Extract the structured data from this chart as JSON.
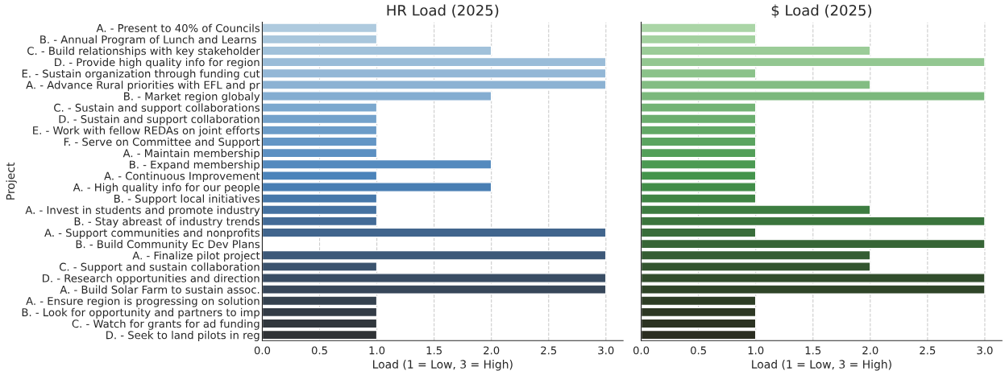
{
  "chart_data": [
    {
      "type": "bar",
      "orientation": "horizontal",
      "title": "HR Load (2025)",
      "xlabel": "Load (1 = Low, 3 = High)",
      "ylabel": "Project",
      "categories": [
        "A. - Present to 40% of Councils",
        "B. - Annual Program of Lunch and Learns ",
        "C. - Build relationships with key stakeholder",
        "D. - Provide high quality info for region",
        "E. - Sustain organization through funding cut",
        "A. - Advance Rural priorities with EFL and pr",
        "B. - Market region globaly",
        "C. - Sustain and support collaborations",
        "D. - Sustain and support collaboration",
        "E. - Work with fellow REDAs on joint efforts",
        "F. - Serve on Committee and Support",
        "A. - Maintain membership",
        "B. - Expand membership",
        "A. - Continuous Improvement",
        "A. - High quality info for our people",
        "B. - Support local initiatives",
        "A. - Invest in students and promote industry",
        "B. - Stay abreast of industry trends",
        "A. - Support communities and nonprofits",
        "B. - Build Community Ec Dev Plans",
        "A. - Finalize pilot project",
        "C. - Support and sustain collaboration",
        "D. - Research opportunities and direction",
        "A. - Build Solar Farm to sustain assoc.",
        "A. - Ensure region is progressing on solution",
        "B. - Look for opportunity and partners to imp",
        "C. - Watch for grants for ad funding",
        "D. - Seek to land pilots in reg"
      ],
      "values": [
        1,
        1,
        2,
        3,
        3,
        3,
        2,
        1,
        1,
        1,
        1,
        1,
        2,
        1,
        2,
        1,
        1,
        1,
        3,
        null,
        3,
        1,
        3,
        3,
        1,
        1,
        1,
        1
      ],
      "colors": [
        "#aecade",
        "#a8c6dc",
        "#a1c1da",
        "#9abcd8",
        "#93b7d6",
        "#8cb2d3",
        "#84add1",
        "#7ca8ce",
        "#74a2cb",
        "#6c9cc8",
        "#6496c5",
        "#5c90c2",
        "#548abe",
        "#4c84ba",
        "#487eb3",
        "#4678aa",
        "#4572a1",
        "#436b97",
        "#41658d",
        "#3f5f83",
        "#3d5979",
        "#3b536e",
        "#394d64",
        "#37475a",
        "#35424f",
        "#333c46",
        "#31373d",
        "#2f3235"
      ],
      "xlim": [
        0,
        3.15
      ],
      "xticks": [
        {
          "value": 0,
          "label": "0.0"
        },
        {
          "value": 0.5,
          "label": "0.5"
        },
        {
          "value": 1,
          "label": "1.0"
        },
        {
          "value": 1.5,
          "label": "1.5"
        },
        {
          "value": 2,
          "label": "2.0"
        },
        {
          "value": 2.5,
          "label": "2.5"
        },
        {
          "value": 3,
          "label": "3.0"
        }
      ],
      "grid": "x"
    },
    {
      "type": "bar",
      "orientation": "horizontal",
      "title": "$ Load (2025)",
      "xlabel": "Load (1 = Low, 3 = High)",
      "tick_labels": "x",
      "values": [
        1,
        1,
        2,
        3,
        1,
        2,
        3,
        1,
        1,
        1,
        1,
        1,
        1,
        1,
        1,
        1,
        2,
        3,
        1,
        3,
        2,
        2,
        3,
        3,
        1,
        1,
        1,
        1
      ],
      "colors": [
        "#aad5a6",
        "#a3d19f",
        "#9bcc98",
        "#93c791",
        "#8bc28a",
        "#83bd83",
        "#7bb87c",
        "#73b375",
        "#6bae6e",
        "#63a967",
        "#5ba460",
        "#539f59",
        "#4b9a52",
        "#44944c",
        "#418d48",
        "#3f8544",
        "#3d7d41",
        "#3b753d",
        "#396d3a",
        "#376536",
        "#355d33",
        "#33552f",
        "#314d2c",
        "#2f4528",
        "#2e3e26",
        "#2d3824",
        "#2c3322",
        "#2b2e21"
      ],
      "xlim": [
        0,
        3.15
      ],
      "xticks": [
        {
          "value": 0,
          "label": "0.0"
        },
        {
          "value": 0.5,
          "label": "0.5"
        },
        {
          "value": 1,
          "label": "1.0"
        },
        {
          "value": 1.5,
          "label": "1.5"
        },
        {
          "value": 2,
          "label": "2.0"
        },
        {
          "value": 2.5,
          "label": "2.5"
        },
        {
          "value": 3,
          "label": "3.0"
        }
      ],
      "grid": "x"
    }
  ]
}
